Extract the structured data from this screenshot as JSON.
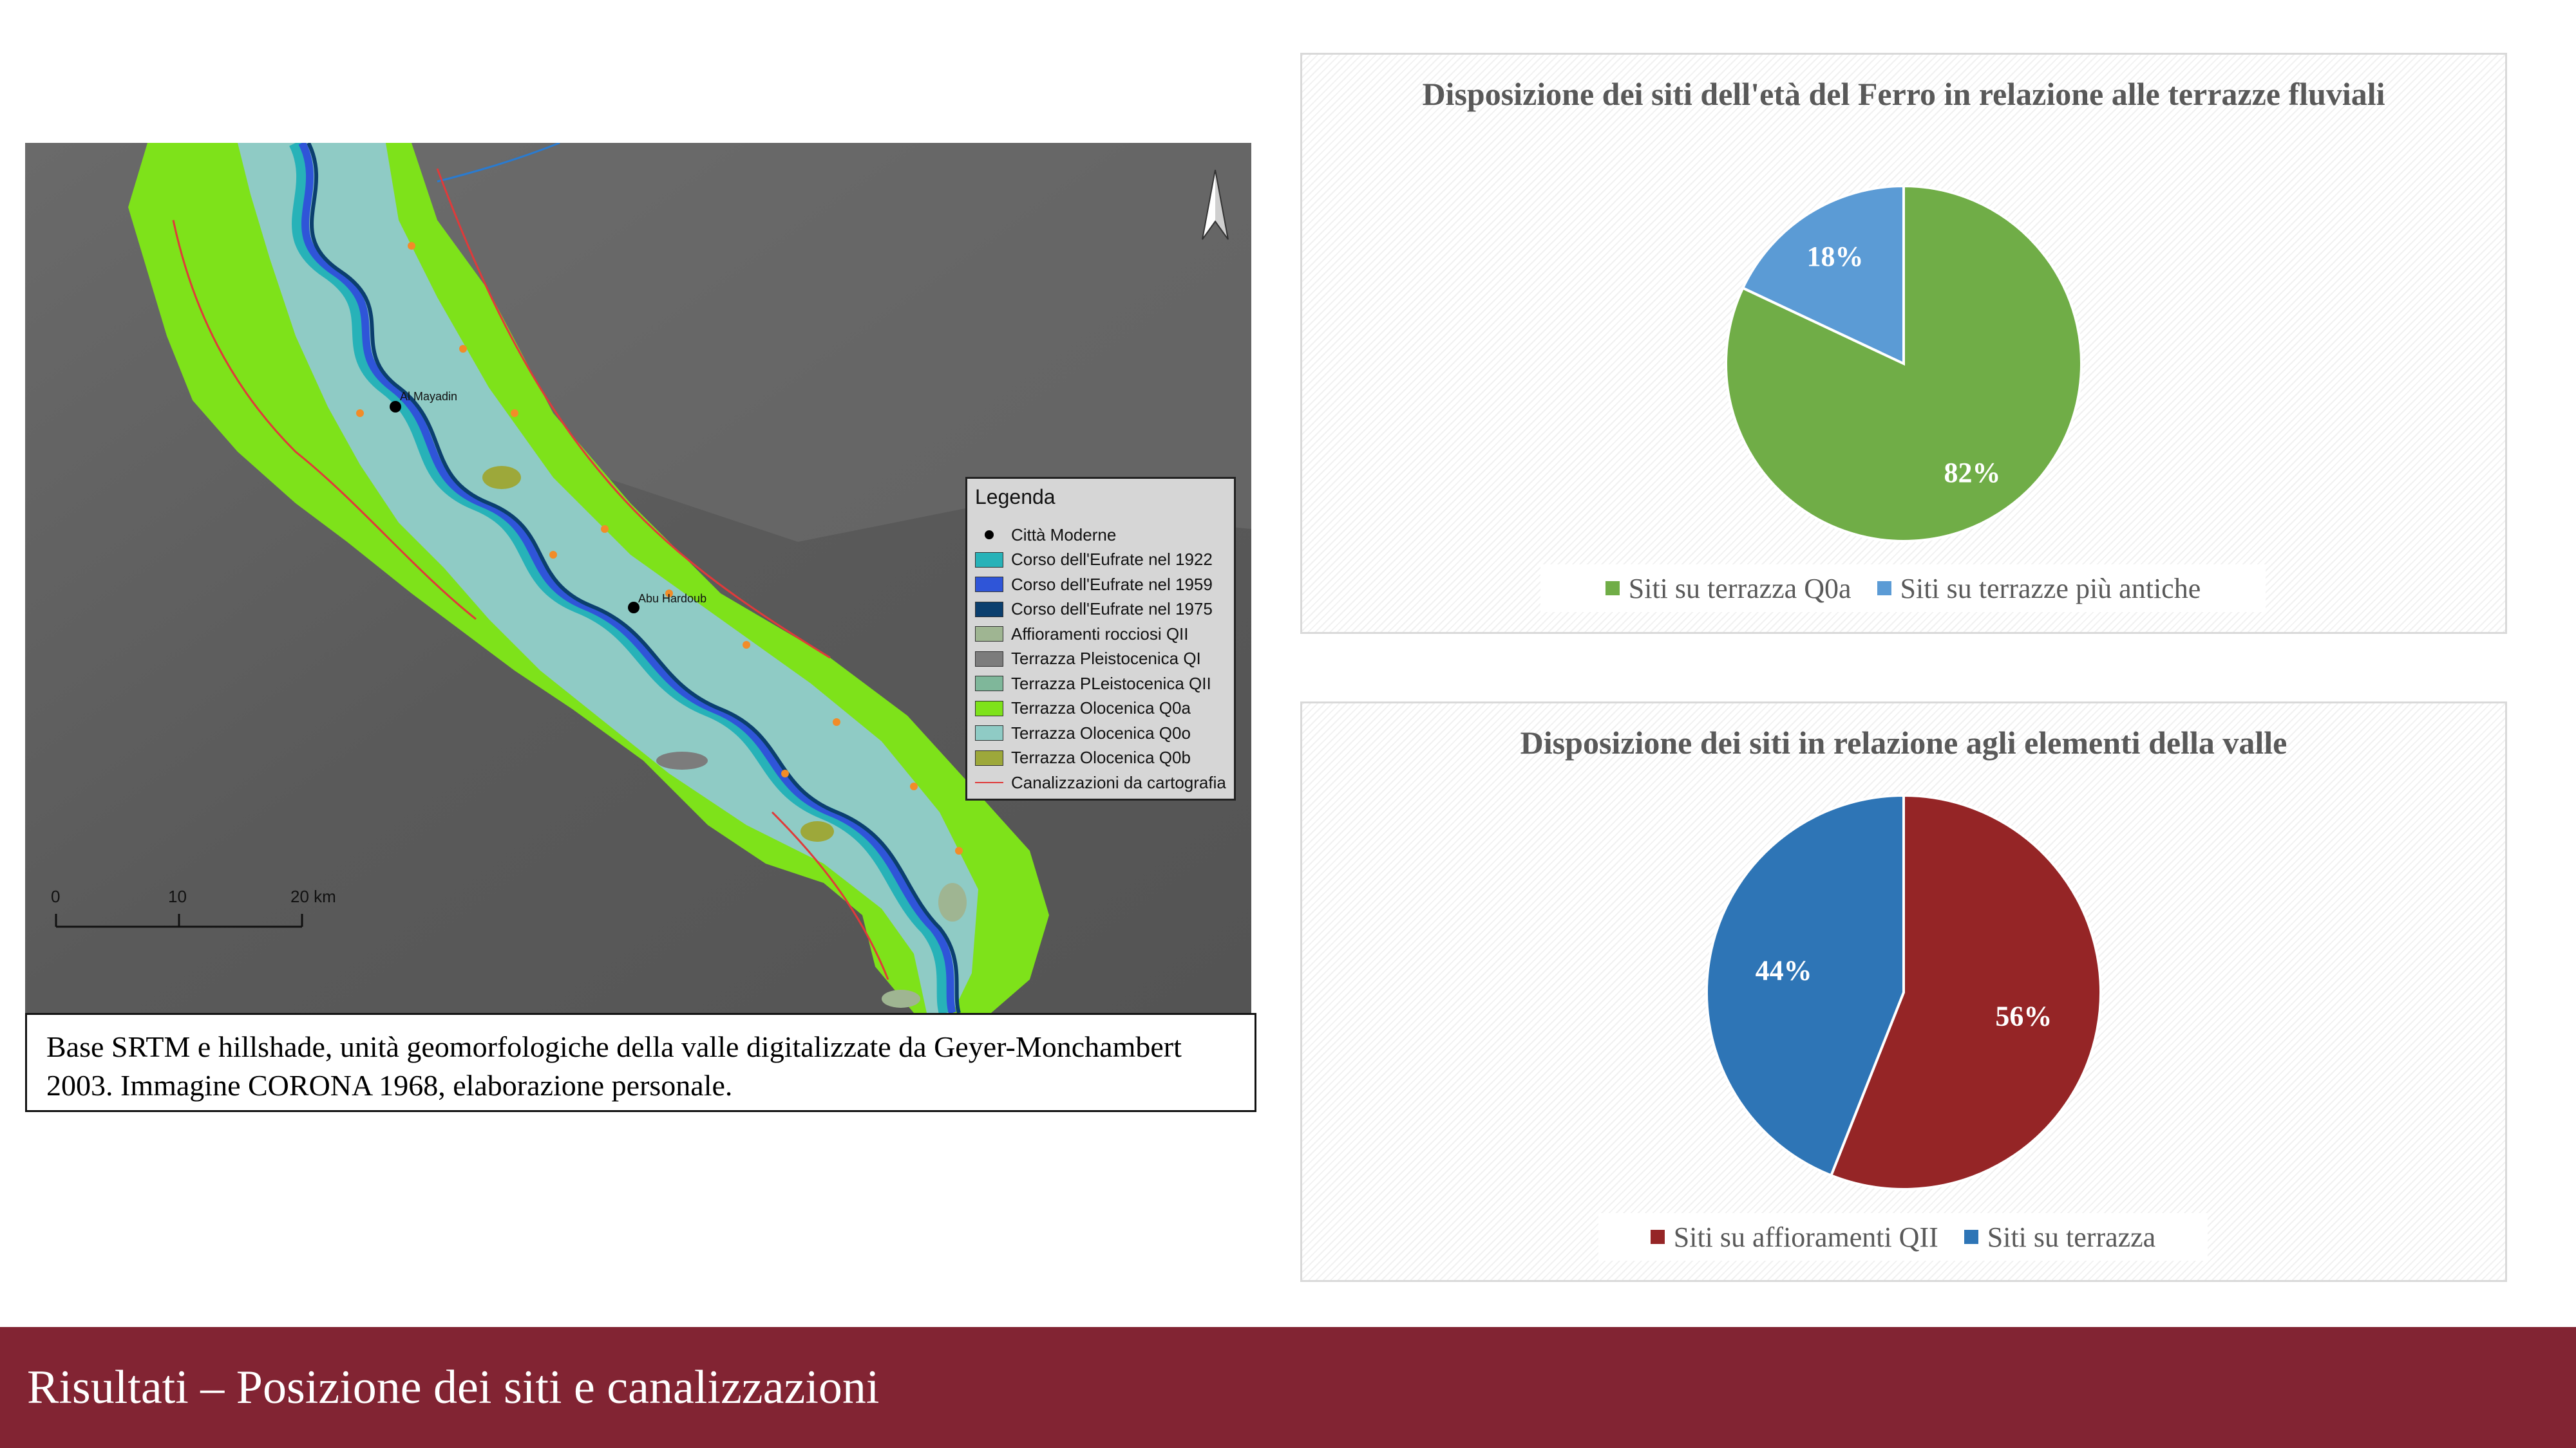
{
  "map": {
    "legend": {
      "title": "Legenda",
      "items": [
        {
          "label": "Città Moderne",
          "kind": "dot",
          "color": "#000000"
        },
        {
          "label": "Corso dell'Eufrate nel 1922",
          "kind": "fill",
          "color": "#27b2b8"
        },
        {
          "label": "Corso dell'Eufrate nel 1959",
          "kind": "fill",
          "color": "#2f55d8"
        },
        {
          "label": "Corso dell'Eufrate nel 1975",
          "kind": "fill",
          "color": "#0b3f6e"
        },
        {
          "label": "Affioramenti rocciosi QII",
          "kind": "fill",
          "color": "#9fb592"
        },
        {
          "label": "Terrazza Pleistocenica QI",
          "kind": "fill",
          "color": "#7c7c7c"
        },
        {
          "label": "Terrazza PLeistocenica QII",
          "kind": "fill",
          "color": "#7fb79a"
        },
        {
          "label": "Terrazza Olocenica Q0a",
          "kind": "fill",
          "color": "#7ee21a"
        },
        {
          "label": "Terrazza Olocenica Q0o",
          "kind": "fill",
          "color": "#8fcbc5"
        },
        {
          "label": "Terrazza Olocenica Q0b",
          "kind": "fill",
          "color": "#9da83a"
        },
        {
          "label": "Canalizzazioni da cartografia",
          "kind": "line",
          "color": "#e03a3a"
        }
      ]
    },
    "scale": {
      "ticks": [
        "0",
        "10",
        "20 km"
      ]
    },
    "places": [
      "Al Mayadin",
      "Abu Hardoub"
    ]
  },
  "caption": "Base SRTM e hillshade, unità geomorfologiche della valle digitalizzate da Geyer-Monchambert 2003. Immagine CORONA 1968, elaborazione personale.",
  "chart_data": [
    {
      "type": "pie",
      "title": "Disposizione dei siti dell'età del Ferro in relazione alle terrazze fluviali",
      "slices": [
        {
          "label": "Siti su terrazza Q0a",
          "value": 82,
          "display": "82%",
          "color": "#70ad47"
        },
        {
          "label": "Siti su terrazze più antiche",
          "value": 18,
          "display": "18%",
          "color": "#5b9bd5"
        }
      ],
      "legend_position": "bottom"
    },
    {
      "type": "pie",
      "title": "Disposizione dei siti in relazione agli elementi della valle",
      "slices": [
        {
          "label": "Siti su affioramenti QII",
          "value": 56,
          "display": "56%",
          "color": "#952526"
        },
        {
          "label": "Siti su terrazza",
          "value": 44,
          "display": "44%",
          "color": "#2e75b6"
        }
      ],
      "legend_position": "bottom"
    }
  ],
  "footer": {
    "title": "Risultati – Posizione dei siti e canalizzazioni"
  }
}
